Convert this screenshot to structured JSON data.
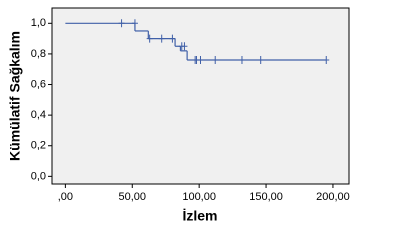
{
  "chart_data": {
    "type": "step",
    "x_label": "İzlem",
    "y_label": "Kümülatif Sağkalım",
    "series": [
      {
        "x": [
          0,
          52,
          62,
          82,
          86,
          91
        ],
        "values": [
          1.0,
          0.95,
          0.9,
          0.85,
          0.82,
          0.76
        ],
        "end_x": 195,
        "color": "#4060a8"
      }
    ],
    "censored": {
      "x": [
        42,
        52,
        63,
        72,
        80,
        87,
        89,
        97,
        98,
        101,
        112,
        132,
        146,
        195
      ],
      "values": [
        1.0,
        1.0,
        0.9,
        0.9,
        0.9,
        0.85,
        0.85,
        0.76,
        0.76,
        0.76,
        0.76,
        0.76,
        0.76,
        0.76
      ]
    },
    "xlim": [
      -10,
      212
    ],
    "ylim": [
      -0.05,
      1.1
    ],
    "xticks": [
      {
        "value": 0,
        "label": ",00"
      },
      {
        "value": 50,
        "label": "50,00"
      },
      {
        "value": 100,
        "label": "100,00"
      },
      {
        "value": 150,
        "label": "150,00"
      },
      {
        "value": 200,
        "label": "200,00"
      }
    ],
    "yticks": [
      {
        "value": 0,
        "label": "0,0"
      },
      {
        "value": 0.2,
        "label": "0,2"
      },
      {
        "value": 0.4,
        "label": "0,4"
      },
      {
        "value": 0.6,
        "label": "0,6"
      },
      {
        "value": 0.8,
        "label": "0,8"
      },
      {
        "value": 1.0,
        "label": "1,0"
      }
    ]
  }
}
